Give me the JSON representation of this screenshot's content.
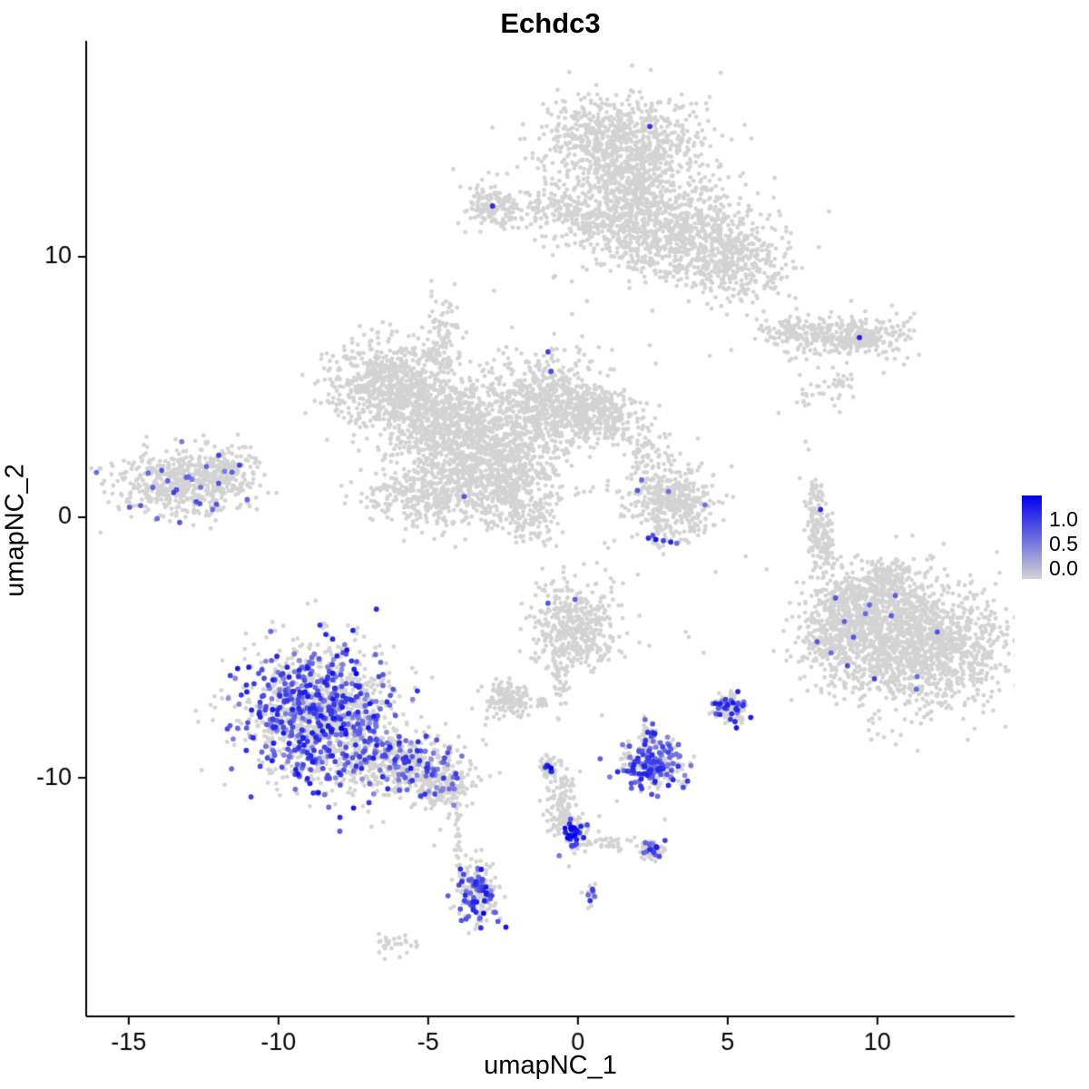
{
  "chart_data": {
    "type": "scatter",
    "title": "Echdc3",
    "xlabel": "umapNC_1",
    "ylabel": "umapNC_2",
    "x_ticks": [
      -15,
      -10,
      -5,
      0,
      5,
      10
    ],
    "x_tick_labels": [
      "-15",
      "-10",
      "-5",
      "0",
      "5",
      "10"
    ],
    "y_ticks": [
      -10,
      0,
      10
    ],
    "y_tick_labels": [
      "-10",
      "0",
      "10"
    ],
    "x_range": [
      -16.42,
      14.58
    ],
    "y_range": [
      -19.16,
      18.29
    ],
    "grid": false,
    "legend": {
      "position": "right",
      "labels": [
        "1.0",
        "0.5",
        "0.0"
      ],
      "values": [
        1.0,
        0.5,
        0.0
      ],
      "color_high": "#0000EE",
      "color_low": "#D3D3D3"
    },
    "point_color_low": "#D3D3D3",
    "point_color_high": "#0000EE",
    "seed": 1337,
    "clusters": [
      {
        "cx": 1.5,
        "cy": 14.3,
        "sx": 1.35,
        "sy": 0.95,
        "n": 850,
        "frac": 0
      },
      {
        "cx": 1.9,
        "cy": 12.6,
        "sx": 0.7,
        "sy": 0.7,
        "n": 250,
        "frac": 0
      },
      {
        "cx": 3.2,
        "cy": 11.0,
        "sx": 1.5,
        "sy": 0.95,
        "n": 750,
        "frac": 0
      },
      {
        "cx": 5.2,
        "cy": 9.8,
        "sx": 0.95,
        "sy": 0.75,
        "n": 350,
        "frac": 0
      },
      {
        "cx": 0.6,
        "cy": 11.4,
        "sx": 0.9,
        "sy": 0.6,
        "n": 220,
        "frac": 0
      },
      {
        "cx": -0.9,
        "cy": 11.7,
        "sx": 0.9,
        "sy": 0.45,
        "n": 90,
        "frac": 0
      },
      {
        "cx": -2.9,
        "cy": 11.9,
        "sx": 0.5,
        "sy": 0.42,
        "n": 140,
        "frac": 0
      },
      {
        "cx": -6.3,
        "cy": 5.2,
        "sx": 1.05,
        "sy": 0.8,
        "n": 650,
        "frac": 0
      },
      {
        "cx": -4.7,
        "cy": 3.7,
        "sx": 1.0,
        "sy": 0.9,
        "n": 600,
        "frac": 0
      },
      {
        "cx": -3.0,
        "cy": 2.3,
        "sx": 1.15,
        "sy": 0.95,
        "n": 700,
        "frac": 0
      },
      {
        "cx": -1.2,
        "cy": 4.3,
        "sx": 1.05,
        "sy": 0.85,
        "n": 650,
        "frac": 0
      },
      {
        "cx": 0.7,
        "cy": 4.0,
        "sx": 0.75,
        "sy": 0.55,
        "n": 280,
        "frac": 0
      },
      {
        "cx": -5.1,
        "cy": 0.8,
        "sx": 1.0,
        "sy": 0.6,
        "n": 320,
        "frac": 0
      },
      {
        "cx": -2.3,
        "cy": 0.9,
        "sx": 0.8,
        "sy": 0.55,
        "n": 220,
        "frac": 0
      },
      {
        "cx": -4.5,
        "cy": 6.9,
        "sx": 0.28,
        "sy": 0.8,
        "n": 90,
        "frac": 0
      },
      {
        "cx": -1.7,
        "cy": -0.2,
        "sx": 0.55,
        "sy": 0.4,
        "n": 90,
        "frac": 0
      },
      {
        "cx": -13.3,
        "cy": 1.3,
        "sx": 1.15,
        "sy": 0.62,
        "n": 520,
        "frac": 0.015,
        "vlo": 0.4,
        "vhi": 0.7
      },
      {
        "cx": -11.7,
        "cy": 1.9,
        "sx": 0.55,
        "sy": 0.45,
        "n": 140,
        "frac": 0.02,
        "vlo": 0.4,
        "vhi": 0.7
      },
      {
        "cx": 3.1,
        "cy": 0.6,
        "sx": 0.75,
        "sy": 0.75,
        "n": 420,
        "frac": 0.005,
        "vlo": 0.4,
        "vhi": 0.7
      },
      {
        "cx": 2.3,
        "cy": 2.4,
        "sx": 0.4,
        "sy": 0.6,
        "n": 60,
        "frac": 0
      },
      {
        "cx": 8.9,
        "cy": 6.9,
        "sx": 1.15,
        "sy": 0.4,
        "n": 360,
        "frac": 0
      },
      {
        "cx": 7.0,
        "cy": 7.2,
        "sx": 0.5,
        "sy": 0.25,
        "n": 60,
        "frac": 0
      },
      {
        "cx": 8.7,
        "cy": 5.0,
        "sx": 0.3,
        "sy": 0.45,
        "n": 30,
        "frac": 0
      },
      {
        "cx": 7.7,
        "cy": 4.6,
        "sx": 0.2,
        "sy": 0.2,
        "n": 14,
        "frac": 0
      },
      {
        "cx": 7.95,
        "cy": -0.2,
        "sx": 0.16,
        "sy": 0.95,
        "n": 120,
        "frac": 0
      },
      {
        "cx": 8.35,
        "cy": -0.9,
        "sx": 0.1,
        "sy": 0.5,
        "n": 45,
        "frac": 0
      },
      {
        "cx": 11.3,
        "cy": -4.9,
        "sx": 1.45,
        "sy": 1.25,
        "n": 1500,
        "frac": 0.002,
        "vlo": 0.4,
        "vhi": 0.7
      },
      {
        "cx": 9.3,
        "cy": -3.4,
        "sx": 0.8,
        "sy": 0.75,
        "n": 380,
        "frac": 0.01,
        "vlo": 0.4,
        "vhi": 0.7
      },
      {
        "cx": 8.4,
        "cy": -4.7,
        "sx": 0.5,
        "sy": 0.8,
        "n": 180,
        "frac": 0.015,
        "vlo": 0.4,
        "vhi": 0.7
      },
      {
        "cx": 10.3,
        "cy": -2.4,
        "sx": 0.6,
        "sy": 0.4,
        "n": 140,
        "frac": 0
      },
      {
        "cx": -8.6,
        "cy": -7.6,
        "sx": 1.25,
        "sy": 1.35,
        "n": 1350,
        "frac": 0.35,
        "vlo": 0.3,
        "vhi": 0.9
      },
      {
        "cx": -5.8,
        "cy": -9.5,
        "sx": 1.0,
        "sy": 0.6,
        "n": 420,
        "frac": 0.2,
        "vlo": 0.3,
        "vhi": 0.8
      },
      {
        "cx": -4.3,
        "cy": -10.4,
        "sx": 0.5,
        "sy": 0.4,
        "n": 140,
        "frac": 0.1,
        "vlo": 0.3,
        "vhi": 0.7
      },
      {
        "cx": -0.1,
        "cy": -4.2,
        "sx": 0.7,
        "sy": 0.85,
        "n": 420,
        "frac": 0
      },
      {
        "cx": -0.6,
        "cy": -6.3,
        "sx": 0.15,
        "sy": 0.6,
        "n": 40,
        "frac": 0
      },
      {
        "cx": -2.4,
        "cy": -7.0,
        "sx": 0.42,
        "sy": 0.38,
        "n": 150,
        "frac": 0
      },
      {
        "cx": -1.2,
        "cy": -7.1,
        "sx": 0.15,
        "sy": 0.12,
        "n": 14,
        "frac": 0
      },
      {
        "cx": 2.5,
        "cy": -9.5,
        "sx": 0.52,
        "sy": 0.48,
        "n": 260,
        "frac": 0.5,
        "vlo": 0.35,
        "vhi": 0.85
      },
      {
        "cx": 2.3,
        "cy": -8.5,
        "sx": 0.18,
        "sy": 0.3,
        "n": 40,
        "frac": 0.1,
        "vlo": 0.4,
        "vhi": 0.8
      },
      {
        "cx": 5.0,
        "cy": -7.3,
        "sx": 0.3,
        "sy": 0.33,
        "n": 110,
        "frac": 0.3,
        "vlo": 0.4,
        "vhi": 0.9
      },
      {
        "cx": -0.95,
        "cy": -9.6,
        "sx": 0.16,
        "sy": 0.25,
        "n": 45,
        "frac": 0.15,
        "vlo": 0.7,
        "vhi": 1.0
      },
      {
        "cx": -0.6,
        "cy": -10.9,
        "sx": 0.28,
        "sy": 0.65,
        "n": 110,
        "frac": 0.03,
        "vlo": 0.4,
        "vhi": 0.8
      },
      {
        "cx": -0.15,
        "cy": -12.1,
        "sx": 0.28,
        "sy": 0.33,
        "n": 85,
        "frac": 0.25,
        "vlo": 0.6,
        "vhi": 1.0
      },
      {
        "cx": 1.1,
        "cy": -12.5,
        "sx": 0.6,
        "sy": 0.14,
        "n": 35,
        "frac": 0.05,
        "vlo": 0.4,
        "vhi": 0.8
      },
      {
        "cx": 2.45,
        "cy": -12.8,
        "sx": 0.22,
        "sy": 0.22,
        "n": 55,
        "frac": 0.25,
        "vlo": 0.4,
        "vhi": 0.9
      },
      {
        "cx": -4.0,
        "cy": -12.4,
        "sx": 0.12,
        "sy": 0.7,
        "n": 30,
        "frac": 0.05,
        "vlo": 0.4,
        "vhi": 0.7
      },
      {
        "cx": -3.4,
        "cy": -14.4,
        "sx": 0.33,
        "sy": 0.65,
        "n": 210,
        "frac": 0.28,
        "vlo": 0.35,
        "vhi": 0.9
      },
      {
        "cx": 0.5,
        "cy": -14.4,
        "sx": 0.15,
        "sy": 0.2,
        "n": 16,
        "frac": 0.3,
        "vlo": 0.5,
        "vhi": 0.8
      },
      {
        "cx": -6.2,
        "cy": -16.4,
        "sx": 0.3,
        "sy": 0.2,
        "n": 28,
        "frac": 0.04,
        "vlo": 0.3,
        "vhi": 0.5
      }
    ],
    "single_points": [
      [
        -2.8,
        8.7
      ],
      [
        5.2,
        8.5
      ],
      [
        4.6,
        -2.1
      ],
      [
        0.2,
        -1.8
      ],
      [
        2.0,
        -2.2
      ],
      [
        3.6,
        -4.4
      ],
      [
        3.7,
        -4.6
      ],
      [
        4.2,
        -5.2
      ],
      [
        0.8,
        -7.6
      ],
      [
        1.3,
        -10.9
      ],
      [
        -0.3,
        -13.4
      ],
      [
        2.9,
        -11.6
      ],
      [
        6.7,
        4.0
      ],
      [
        7.6,
        2.9
      ],
      [
        7.7,
        2.6
      ],
      [
        -4.6,
        -12.0
      ],
      [
        -4.8,
        -12.6
      ],
      [
        -7.0,
        -11.3
      ],
      [
        -6.5,
        -11.7
      ],
      [
        2.6,
        5.9
      ],
      [
        2.4,
        6.6
      ],
      [
        -9.1,
        4.0
      ],
      [
        6.3,
        -2.0
      ],
      [
        5.6,
        -1.5
      ],
      [
        4.4,
        6.2
      ],
      [
        -0.2,
        7.8
      ],
      [
        0.3,
        8.3
      ],
      [
        7.3,
        8.0
      ],
      [
        6.2,
        7.9
      ]
    ],
    "highlight_points": [
      [
        2.4,
        15.0,
        0.75
      ],
      [
        -2.85,
        11.95,
        0.8
      ],
      [
        -1.0,
        6.35,
        0.7
      ],
      [
        -0.9,
        5.6,
        0.65
      ],
      [
        -3.8,
        0.8,
        0.6
      ],
      [
        -14.6,
        0.45,
        0.6
      ],
      [
        -14.2,
        1.15,
        0.55
      ],
      [
        -13.9,
        1.8,
        0.6
      ],
      [
        -13.5,
        0.95,
        0.7
      ],
      [
        -13.0,
        1.55,
        0.5
      ],
      [
        -12.75,
        0.6,
        0.65
      ],
      [
        -12.4,
        1.95,
        0.55
      ],
      [
        -14.05,
        -0.05,
        0.5
      ],
      [
        -13.3,
        -0.2,
        0.6
      ],
      [
        -12.0,
        1.3,
        0.6
      ],
      [
        -11.3,
        2.0,
        0.7
      ],
      [
        -12.6,
        1.15,
        0.45
      ],
      [
        -13.7,
        1.4,
        0.55
      ],
      [
        -14.35,
        1.7,
        0.5
      ],
      [
        -12.2,
        0.3,
        0.5
      ],
      [
        2.35,
        -0.8,
        0.8
      ],
      [
        2.6,
        -0.85,
        0.9
      ],
      [
        2.85,
        -0.9,
        0.7
      ],
      [
        3.1,
        -0.95,
        0.85
      ],
      [
        2.5,
        -0.7,
        0.6
      ],
      [
        3.3,
        -1.0,
        0.5
      ],
      [
        9.4,
        6.9,
        0.85
      ],
      [
        8.1,
        0.3,
        0.8
      ],
      [
        8.6,
        -3.1,
        0.6
      ],
      [
        8.9,
        -4.0,
        0.55
      ],
      [
        9.2,
        -4.6,
        0.6
      ],
      [
        8.45,
        -5.2,
        0.5
      ],
      [
        9.0,
        -5.7,
        0.65
      ],
      [
        9.6,
        -3.7,
        0.5
      ],
      [
        10.6,
        -3.0,
        0.55
      ],
      [
        12.0,
        -4.4,
        0.6
      ],
      [
        9.9,
        -6.2,
        0.7
      ],
      [
        11.3,
        -6.6,
        0.5
      ],
      [
        -1.0,
        -3.3,
        0.6
      ],
      [
        -0.1,
        -3.15,
        0.55
      ],
      [
        -1.0,
        -9.55,
        0.9
      ],
      [
        -0.9,
        -9.75,
        0.8
      ],
      [
        -0.2,
        -11.9,
        1.0
      ],
      [
        -0.1,
        -12.2,
        0.95
      ],
      [
        -0.05,
        -12.0,
        0.85
      ],
      [
        2.4,
        -12.75,
        0.8
      ],
      [
        2.55,
        -12.9,
        0.6
      ],
      [
        -3.15,
        -15.2,
        1.0
      ],
      [
        -3.5,
        -14.9,
        0.7
      ],
      [
        -3.3,
        -14.2,
        0.6
      ],
      [
        -3.55,
        -13.9,
        0.5
      ],
      [
        0.5,
        -14.35,
        0.6
      ],
      [
        0.55,
        -14.55,
        0.5
      ],
      [
        -7.4,
        -6.0,
        1.0
      ],
      [
        -7.9,
        -8.1,
        1.0
      ],
      [
        5.0,
        -7.2,
        0.85
      ]
    ]
  }
}
